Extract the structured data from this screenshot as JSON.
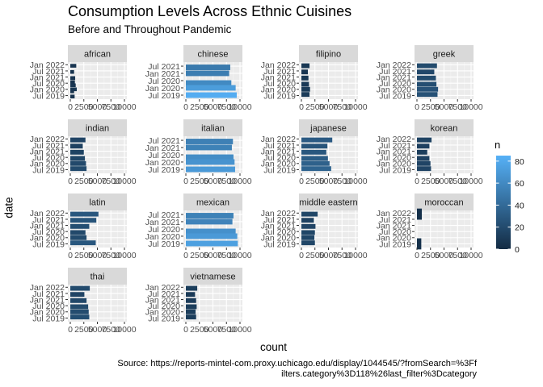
{
  "chart_data": {
    "type": "bar",
    "title": "Consumption Levels Across Ethnic Cuisines",
    "subtitle": "Before and Throughout Pandemic",
    "xlabel": "count",
    "ylabel": "date",
    "caption_line1": "Source: https://reports-mintel-com.proxy.uchicago.edu/display/1044545/?fromSearch=%3Ff",
    "caption_line2": "ilters.category%3D118%26last_filter%3Dcategory",
    "x_tick_labels": [
      "0",
      "2500",
      "5000",
      "7500",
      "10000"
    ],
    "xlim": [
      0,
      10000
    ],
    "legend": {
      "title": "n",
      "min": 0,
      "max": 85,
      "tick_values": [
        0,
        20,
        40,
        60,
        80
      ],
      "tick_labels": [
        "0",
        "20",
        "40",
        "60",
        "80"
      ],
      "color_low": "#132B43",
      "color_high": "#56B1F7"
    },
    "panels": [
      {
        "name": "african",
        "ylim": [
          "2019-05-01",
          "2022-02-01"
        ],
        "y_tick_labels": [
          "Jan 2022",
          "Jul 2021",
          "Jan 2021",
          "Jul 2020",
          "Jan 2020",
          "Jul 2019"
        ],
        "y_tick_values": [
          "2022-01-01",
          "2021-07-01",
          "2021-01-01",
          "2020-07-01",
          "2020-01-01",
          "2019-07-01"
        ],
        "x_tick_labels": [
          "0",
          "2500",
          "5000",
          "7500",
          "10000"
        ],
        "bars": [
          {
            "date": "2021-12-01",
            "value": 1100,
            "n": 6
          },
          {
            "date": "2021-06-01",
            "value": 700,
            "n": 5
          },
          {
            "date": "2020-12-01",
            "value": 900,
            "n": 6
          },
          {
            "date": "2020-08-01",
            "value": 850,
            "n": 5
          },
          {
            "date": "2020-05-01",
            "value": 1000,
            "n": 7
          },
          {
            "date": "2020-01-01",
            "value": 1200,
            "n": 8
          },
          {
            "date": "2019-11-01",
            "value": 700,
            "n": 5
          },
          {
            "date": "2019-06-01",
            "value": 800,
            "n": 5
          }
        ]
      },
      {
        "name": "chinese",
        "ylim": [
          "2019-05-01",
          "2021-09-01"
        ],
        "y_tick_labels": [
          "Jul 2021",
          "Jan 2021",
          "Jul 2020",
          "Jan 2020",
          "Jul 2019"
        ],
        "y_tick_values": [
          "2021-07-01",
          "2021-01-01",
          "2020-07-01",
          "2020-01-01",
          "2019-07-01"
        ],
        "x_tick_labels": [
          "0",
          "2500",
          "5000",
          "7500",
          "10000"
        ],
        "bars": [
          {
            "date": "2021-06-01",
            "value": 8200,
            "n": 50
          },
          {
            "date": "2021-01-01",
            "value": 8000,
            "n": 52
          },
          {
            "date": "2020-05-01",
            "value": 8400,
            "n": 60
          },
          {
            "date": "2020-01-01",
            "value": 9200,
            "n": 72
          },
          {
            "date": "2019-07-01",
            "value": 9400,
            "n": 82
          }
        ]
      },
      {
        "name": "filipino",
        "ylim": [
          "2019-05-01",
          "2022-02-01"
        ],
        "y_tick_labels": [
          "Jan 2022",
          "Jul 2021",
          "Jan 2021",
          "Jul 2020",
          "Jan 2020",
          "Jul 2019"
        ],
        "y_tick_values": [
          "2022-01-01",
          "2021-07-01",
          "2021-01-01",
          "2020-07-01",
          "2020-01-01",
          "2019-07-01"
        ],
        "x_tick_labels": [
          "0",
          "2500",
          "5000",
          "7500",
          "10000"
        ],
        "bars": [
          {
            "date": "2021-12-01",
            "value": 1500,
            "n": 8
          },
          {
            "date": "2021-06-01",
            "value": 1200,
            "n": 7
          },
          {
            "date": "2020-12-01",
            "value": 1300,
            "n": 8
          },
          {
            "date": "2020-06-01",
            "value": 1400,
            "n": 9
          },
          {
            "date": "2020-01-01",
            "value": 1600,
            "n": 10
          },
          {
            "date": "2019-08-01",
            "value": 1500,
            "n": 10
          }
        ]
      },
      {
        "name": "greek",
        "ylim": [
          "2019-05-01",
          "2022-02-01"
        ],
        "y_tick_labels": [
          "Jan 2022",
          "Jul 2021",
          "Jan 2021",
          "Jul 2020",
          "Jan 2020",
          "Jul 2019"
        ],
        "y_tick_values": [
          "2022-01-01",
          "2021-07-01",
          "2021-01-01",
          "2020-07-01",
          "2020-01-01",
          "2019-07-01"
        ],
        "x_tick_labels": [
          "0",
          "2500",
          "5000",
          "7500",
          "10000"
        ],
        "bars": [
          {
            "date": "2021-12-01",
            "value": 3700,
            "n": 20
          },
          {
            "date": "2021-06-01",
            "value": 3200,
            "n": 18
          },
          {
            "date": "2020-12-01",
            "value": 3500,
            "n": 20
          },
          {
            "date": "2020-06-01",
            "value": 3600,
            "n": 22
          },
          {
            "date": "2020-01-01",
            "value": 3900,
            "n": 25
          },
          {
            "date": "2019-08-01",
            "value": 3800,
            "n": 24
          }
        ]
      },
      {
        "name": "indian",
        "ylim": [
          "2019-05-01",
          "2022-02-01"
        ],
        "y_tick_labels": [
          "Jan 2022",
          "Jul 2021",
          "Jan 2021",
          "Jul 2020",
          "Jan 2020",
          "Jul 2019"
        ],
        "y_tick_values": [
          "2022-01-01",
          "2021-07-01",
          "2021-01-01",
          "2020-07-01",
          "2020-01-01",
          "2019-07-01"
        ],
        "x_tick_labels": [
          "0",
          "2500",
          "5000",
          "7500",
          "10000"
        ],
        "bars": [
          {
            "date": "2021-12-01",
            "value": 2800,
            "n": 16
          },
          {
            "date": "2021-06-01",
            "value": 2300,
            "n": 14
          },
          {
            "date": "2020-12-01",
            "value": 2500,
            "n": 15
          },
          {
            "date": "2020-06-01",
            "value": 2700,
            "n": 17
          },
          {
            "date": "2020-01-01",
            "value": 2900,
            "n": 19
          },
          {
            "date": "2019-08-01",
            "value": 3000,
            "n": 20
          }
        ]
      },
      {
        "name": "italian",
        "ylim": [
          "2019-05-01",
          "2021-09-01"
        ],
        "y_tick_labels": [
          "Jul 2021",
          "Jan 2021",
          "Jul 2020",
          "Jan 2020",
          "Jul 2019"
        ],
        "y_tick_values": [
          "2021-07-01",
          "2021-01-01",
          "2020-07-01",
          "2020-01-01",
          "2019-07-01"
        ],
        "x_tick_labels": [
          "0",
          "2500",
          "5000",
          "7500",
          "10000"
        ],
        "bars": [
          {
            "date": "2021-06-01",
            "value": 8700,
            "n": 54
          },
          {
            "date": "2021-01-01",
            "value": 8500,
            "n": 55
          },
          {
            "date": "2020-05-01",
            "value": 8800,
            "n": 62
          },
          {
            "date": "2020-01-01",
            "value": 9000,
            "n": 66
          },
          {
            "date": "2019-07-01",
            "value": 9100,
            "n": 70
          }
        ]
      },
      {
        "name": "japanese",
        "ylim": [
          "2019-05-01",
          "2022-02-01"
        ],
        "y_tick_labels": [
          "Jan 2022",
          "Jul 2021",
          "Jan 2021",
          "Jul 2020",
          "Jan 2020",
          "Jul 2019"
        ],
        "y_tick_values": [
          "2022-01-01",
          "2021-07-01",
          "2021-01-01",
          "2020-07-01",
          "2020-01-01",
          "2019-07-01"
        ],
        "x_tick_labels": [
          "0",
          "2500",
          "5000",
          "7500",
          "10000"
        ],
        "bars": [
          {
            "date": "2021-12-01",
            "value": 5700,
            "n": 30
          },
          {
            "date": "2021-06-01",
            "value": 4800,
            "n": 26
          },
          {
            "date": "2020-12-01",
            "value": 4600,
            "n": 28
          },
          {
            "date": "2020-06-01",
            "value": 4900,
            "n": 31
          },
          {
            "date": "2020-01-01",
            "value": 5200,
            "n": 34
          },
          {
            "date": "2019-08-01",
            "value": 5500,
            "n": 36
          }
        ]
      },
      {
        "name": "korean",
        "ylim": [
          "2019-05-01",
          "2022-02-01"
        ],
        "y_tick_labels": [
          "Jan 2022",
          "Jul 2021",
          "Jan 2021",
          "Jul 2020",
          "Jan 2020",
          "Jul 2019"
        ],
        "y_tick_values": [
          "2022-01-01",
          "2021-07-01",
          "2021-01-01",
          "2020-07-01",
          "2020-01-01",
          "2019-07-01"
        ],
        "x_tick_labels": [
          "0",
          "2500",
          "5000",
          "7500",
          "10000"
        ],
        "bars": [
          {
            "date": "2021-12-01",
            "value": 2700,
            "n": 15
          },
          {
            "date": "2021-06-01",
            "value": 2300,
            "n": 13
          },
          {
            "date": "2020-12-01",
            "value": 1900,
            "n": 12
          },
          {
            "date": "2020-06-01",
            "value": 2300,
            "n": 14
          },
          {
            "date": "2020-01-01",
            "value": 2500,
            "n": 16
          },
          {
            "date": "2019-08-01",
            "value": 2600,
            "n": 16
          }
        ]
      },
      {
        "name": "latin",
        "ylim": [
          "2019-05-01",
          "2022-02-01"
        ],
        "y_tick_labels": [
          "Jan 2022",
          "Jul 2021",
          "Jan 2021",
          "Jul 2020",
          "Jan 2020",
          "Jul 2019"
        ],
        "y_tick_values": [
          "2022-01-01",
          "2021-07-01",
          "2021-01-01",
          "2020-07-01",
          "2020-01-01",
          "2019-07-01"
        ],
        "x_tick_labels": [
          "0",
          "2500",
          "5000",
          "7500",
          "10000"
        ],
        "bars": [
          {
            "date": "2021-12-01",
            "value": 5200,
            "n": 28
          },
          {
            "date": "2021-06-01",
            "value": 4800,
            "n": 26
          },
          {
            "date": "2020-12-01",
            "value": 3500,
            "n": 22
          },
          {
            "date": "2020-06-01",
            "value": 2800,
            "n": 19
          },
          {
            "date": "2020-01-01",
            "value": 3000,
            "n": 20
          },
          {
            "date": "2019-08-01",
            "value": 4700,
            "n": 28
          }
        ]
      },
      {
        "name": "mexican",
        "ylim": [
          "2019-05-01",
          "2021-09-01"
        ],
        "y_tick_labels": [
          "Jul 2021",
          "Jan 2021",
          "Jul 2020",
          "Jan 2020",
          "Jul 2019"
        ],
        "y_tick_values": [
          "2021-07-01",
          "2021-01-01",
          "2020-07-01",
          "2020-01-01",
          "2019-07-01"
        ],
        "x_tick_labels": [
          "0",
          "2500",
          "5000",
          "7500",
          "10000"
        ],
        "bars": [
          {
            "date": "2021-06-01",
            "value": 8800,
            "n": 55
          },
          {
            "date": "2021-01-01",
            "value": 8600,
            "n": 56
          },
          {
            "date": "2020-05-01",
            "value": 9200,
            "n": 64
          },
          {
            "date": "2020-01-01",
            "value": 9500,
            "n": 70
          },
          {
            "date": "2019-07-01",
            "value": 9600,
            "n": 74
          }
        ]
      },
      {
        "name": "middle eastern",
        "ylim": [
          "2019-05-01",
          "2022-02-01"
        ],
        "y_tick_labels": [
          "Jan 2022",
          "Jul 2021",
          "Jan 2021",
          "Jul 2020",
          "Jan 2020",
          "Jul 2019"
        ],
        "y_tick_values": [
          "2022-01-01",
          "2021-07-01",
          "2021-01-01",
          "2020-07-01",
          "2020-01-01",
          "2019-07-01"
        ],
        "x_tick_labels": [
          "0",
          "2500",
          "5000",
          "7500",
          "10000"
        ],
        "bars": [
          {
            "date": "2021-12-01",
            "value": 3000,
            "n": 17
          },
          {
            "date": "2021-06-01",
            "value": 2300,
            "n": 14
          },
          {
            "date": "2020-12-01",
            "value": 2600,
            "n": 16
          },
          {
            "date": "2020-06-01",
            "value": 2500,
            "n": 17
          },
          {
            "date": "2020-01-01",
            "value": 2400,
            "n": 17
          },
          {
            "date": "2019-08-01",
            "value": 2500,
            "n": 17
          }
        ]
      },
      {
        "name": "moroccan",
        "ylim": [
          "2019-05-01",
          "2022-02-01"
        ],
        "y_tick_labels": [
          "Jan 2022",
          "Jul 2021",
          "Jan 2021",
          "Jul 2020",
          "Jan 2020",
          "Jul 2019"
        ],
        "y_tick_values": [
          "2022-01-01",
          "2021-07-01",
          "2021-01-01",
          "2020-07-01",
          "2020-01-01",
          "2019-07-01"
        ],
        "x_tick_labels": [
          "0",
          "2500",
          "5000",
          "7500",
          "10000"
        ],
        "bars": [
          {
            "date": "2021-12-01",
            "value": 900,
            "n": 4
          },
          {
            "date": "2019-07-01",
            "value": 800,
            "n": 4
          }
        ]
      },
      {
        "name": "thai",
        "ylim": [
          "2019-05-01",
          "2022-02-01"
        ],
        "y_tick_labels": [
          "Jan 2022",
          "Jul 2021",
          "Jan 2021",
          "Jul 2020",
          "Jan 2020",
          "Jul 2019"
        ],
        "y_tick_values": [
          "2022-01-01",
          "2021-07-01",
          "2021-01-01",
          "2020-07-01",
          "2020-01-01",
          "2019-07-01"
        ],
        "x_tick_labels": [
          "0",
          "2500",
          "5000",
          "7500",
          "10000"
        ],
        "bars": [
          {
            "date": "2021-12-01",
            "value": 3600,
            "n": 20
          },
          {
            "date": "2021-06-01",
            "value": 2600,
            "n": 16
          },
          {
            "date": "2020-12-01",
            "value": 3000,
            "n": 18
          },
          {
            "date": "2020-06-01",
            "value": 3300,
            "n": 20
          },
          {
            "date": "2020-01-01",
            "value": 3400,
            "n": 21
          },
          {
            "date": "2019-08-01",
            "value": 3500,
            "n": 22
          }
        ]
      },
      {
        "name": "vietnamese",
        "ylim": [
          "2019-05-01",
          "2022-02-01"
        ],
        "y_tick_labels": [
          "Jan 2022",
          "Jul 2021",
          "Jan 2021",
          "Jul 2020",
          "Jan 2020",
          "Jul 2019"
        ],
        "y_tick_values": [
          "2022-01-01",
          "2021-07-01",
          "2021-01-01",
          "2020-07-01",
          "2020-01-01",
          "2019-07-01"
        ],
        "x_tick_labels": [
          "0",
          "2500",
          "5000",
          "7500",
          "10000"
        ],
        "bars": [
          {
            "date": "2021-12-01",
            "value": 2100,
            "n": 12
          },
          {
            "date": "2021-06-01",
            "value": 1700,
            "n": 10
          },
          {
            "date": "2020-12-01",
            "value": 1900,
            "n": 11
          },
          {
            "date": "2020-06-01",
            "value": 2000,
            "n": 12
          },
          {
            "date": "2020-01-01",
            "value": 1800,
            "n": 12
          },
          {
            "date": "2019-08-01",
            "value": 1900,
            "n": 12
          }
        ]
      }
    ]
  }
}
